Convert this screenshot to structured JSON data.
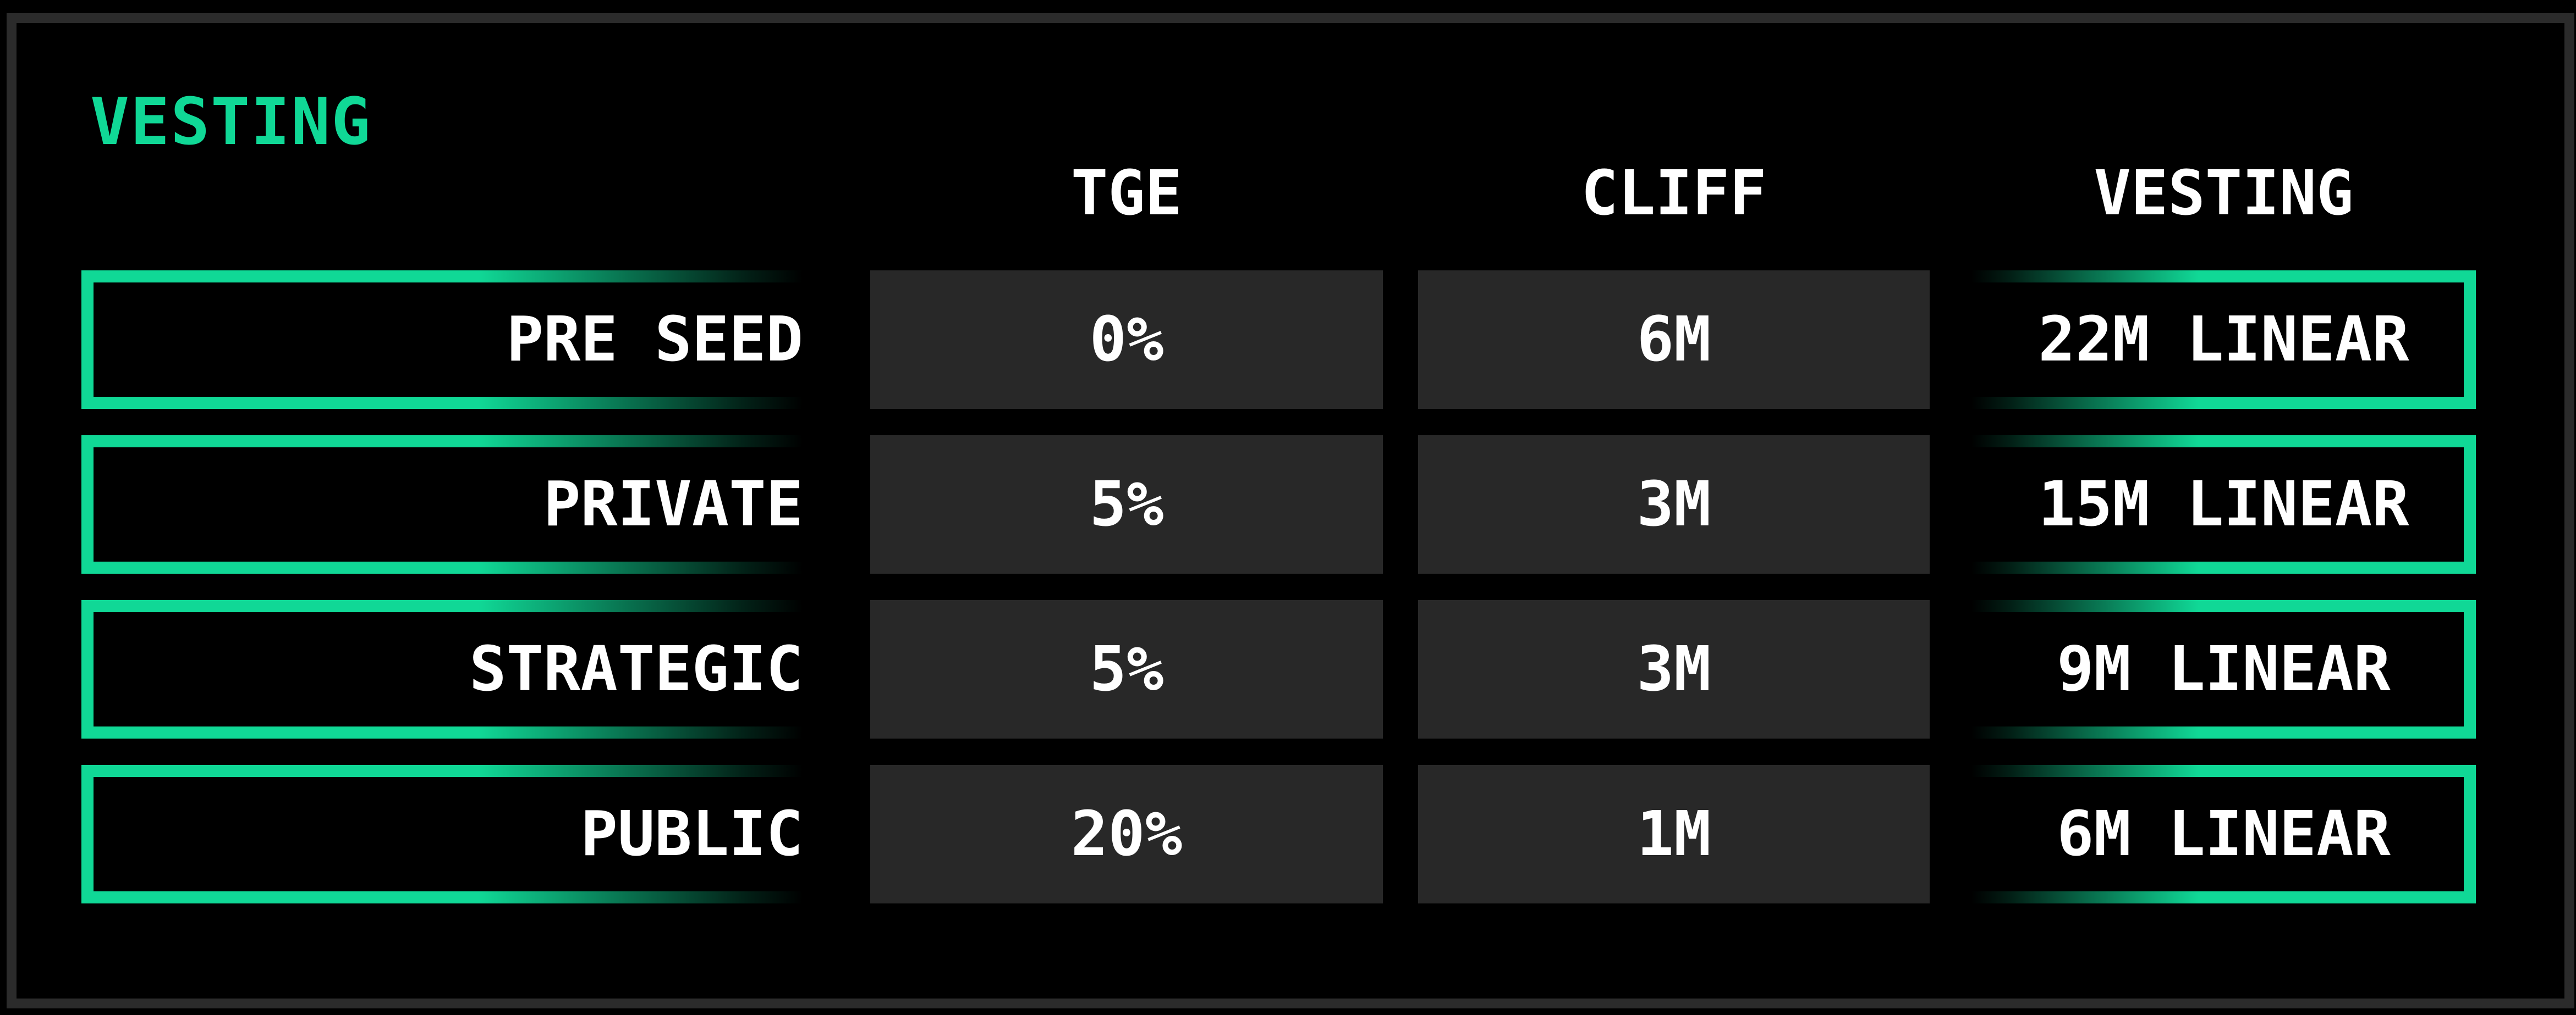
{
  "title": "VESTING",
  "columns": {
    "tge": "TGE",
    "cliff": "CLIFF",
    "vesting": "VESTING"
  },
  "rows": [
    {
      "label": "PRE SEED",
      "tge": "0%",
      "cliff": "6M",
      "vesting": "22M LINEAR"
    },
    {
      "label": "PRIVATE",
      "tge": "5%",
      "cliff": "3M",
      "vesting": "15M LINEAR"
    },
    {
      "label": "STRATEGIC",
      "tge": "5%",
      "cliff": "3M",
      "vesting": "9M LINEAR"
    },
    {
      "label": "PUBLIC",
      "tge": "20%",
      "cliff": "1M",
      "vesting": "6M LINEAR"
    }
  ],
  "colors": {
    "accent": "#10d896",
    "cell_background": "#282828",
    "frame_border": "#2b2b2b",
    "background": "#000000",
    "text": "#ffffff"
  }
}
